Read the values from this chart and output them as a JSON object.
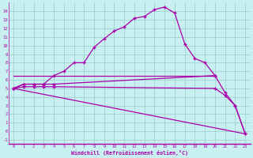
{
  "xlabel": "Windchill (Refroidissement éolien,°C)",
  "bg_color": "#c8f0f0",
  "line_color": "#aa00aa",
  "grid_color": "#99cccc",
  "xlim": [
    -0.5,
    23.5
  ],
  "ylim": [
    -1.5,
    15.0
  ],
  "xtick_labels": [
    "0",
    "1",
    "2",
    "3",
    "4",
    "5",
    "6",
    "7",
    "8",
    "9",
    "10",
    "11",
    "12",
    "13",
    "14",
    "15",
    "16",
    "17",
    "18",
    "19",
    "20",
    "21",
    "22",
    "23"
  ],
  "xtick_vals": [
    0,
    1,
    2,
    3,
    4,
    5,
    6,
    7,
    8,
    9,
    10,
    11,
    12,
    13,
    14,
    15,
    16,
    17,
    18,
    19,
    20,
    21,
    22,
    23
  ],
  "ytick_vals": [
    -1,
    0,
    1,
    2,
    3,
    4,
    5,
    6,
    7,
    8,
    9,
    10,
    11,
    12,
    13,
    14
  ],
  "line1_x": [
    0,
    1,
    2,
    3,
    4,
    5,
    6,
    7,
    8,
    9,
    10,
    11,
    12,
    13,
    14,
    15,
    16,
    17,
    18,
    19,
    20
  ],
  "line1_y": [
    5.0,
    5.5,
    5.5,
    5.5,
    6.5,
    7.0,
    8.0,
    8.0,
    9.8,
    10.8,
    11.7,
    12.2,
    13.2,
    13.4,
    14.2,
    14.5,
    13.8,
    10.2,
    8.5,
    8.0,
    6.5
  ],
  "line2_x": [
    0,
    1,
    2,
    3,
    4,
    20,
    21,
    22,
    23
  ],
  "line2_y": [
    5.0,
    5.5,
    5.5,
    5.5,
    5.5,
    6.5,
    4.5,
    3.0,
    -0.3
  ],
  "line3_x": [
    0,
    1,
    2,
    3,
    4,
    20,
    21,
    22,
    23
  ],
  "line3_y": [
    5.0,
    5.2,
    5.2,
    5.2,
    5.2,
    5.0,
    4.2,
    3.0,
    -0.3
  ],
  "line4_x": [
    0,
    23
  ],
  "line4_y": [
    5.0,
    -0.3
  ],
  "line5_x": [
    0,
    20
  ],
  "line5_y": [
    6.5,
    6.5
  ]
}
